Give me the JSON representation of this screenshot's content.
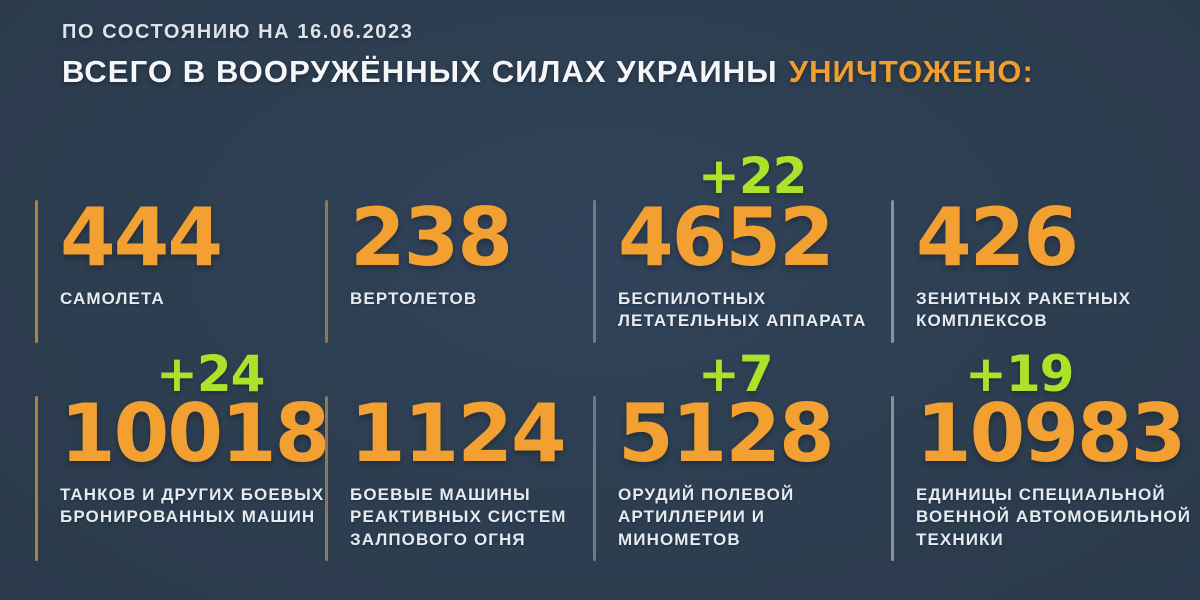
{
  "colors": {
    "background": "#2d3e50",
    "accent_orange": "#f2a032",
    "accent_green": "#abe32a",
    "label_white": "#e6ebf1"
  },
  "header": {
    "date_line": "ПО СОСТОЯНИЮ НА 16.06.2023",
    "title_main": "ВСЕГО В ВООРУЖЁННЫХ СИЛАХ УКРАИНЫ",
    "title_accent": "УНИЧТОЖЕНО:"
  },
  "rows": [
    [
      {
        "value": "444",
        "label": "САМОЛЕТА",
        "delta": ""
      },
      {
        "value": "238",
        "label": "ВЕРТОЛЕТОВ",
        "delta": ""
      },
      {
        "value": "4652",
        "label": "БЕСПИЛОТНЫХ\nЛЕТАТЕЛЬНЫХ АППАРАТА",
        "delta": "+22"
      },
      {
        "value": "426",
        "label": "ЗЕНИТНЫХ РАКЕТНЫХ\nКОМПЛЕКСОВ",
        "delta": ""
      }
    ],
    [
      {
        "value": "10018",
        "label": "ТАНКОВ И ДРУГИХ БОЕВЫХ\nБРОНИРОВАННЫХ МАШИН",
        "delta": "+24"
      },
      {
        "value": "1124",
        "label": "БОЕВЫЕ МАШИНЫ\nРЕАКТИВНЫХ СИСТЕМ\nЗАЛПОВОГО ОГНЯ",
        "delta": ""
      },
      {
        "value": "5128",
        "label": "ОРУДИЙ ПОЛЕВОЙ\nАРТИЛЛЕРИИ И МИНОМЕТОВ",
        "delta": "+7"
      },
      {
        "value": "10983",
        "label": "ЕДИНИЦЫ СПЕЦИАЛЬНОЙ\nВОЕННОЙ АВТОМОБИЛЬНОЙ\nТЕХНИКИ",
        "delta": "+19"
      }
    ]
  ],
  "chart_data": {
    "type": "table",
    "title": "ВСЕГО В ВООРУЖЁННЫХ СИЛАХ УКРАИНЫ УНИЧТОЖЕНО:",
    "subtitle": "ПО СОСТОЯНИЮ НА 16.06.2023",
    "categories": [
      "самолета",
      "вертолетов",
      "беспилотных летательных аппарата",
      "зенитных ракетных комплексов",
      "танков и других боевых бронированных машин",
      "боевые машины реактивных систем залпового огня",
      "орудий полевой артиллерии и минометов",
      "единицы специальной военной автомобильной техники"
    ],
    "values": [
      444,
      238,
      4652,
      426,
      10018,
      1124,
      5128,
      10983
    ],
    "daily_deltas": [
      null,
      null,
      22,
      null,
      24,
      null,
      7,
      19
    ],
    "layout": "2 rows x 4 columns, deltas shown in green above values, values orange, labels white uppercase"
  }
}
